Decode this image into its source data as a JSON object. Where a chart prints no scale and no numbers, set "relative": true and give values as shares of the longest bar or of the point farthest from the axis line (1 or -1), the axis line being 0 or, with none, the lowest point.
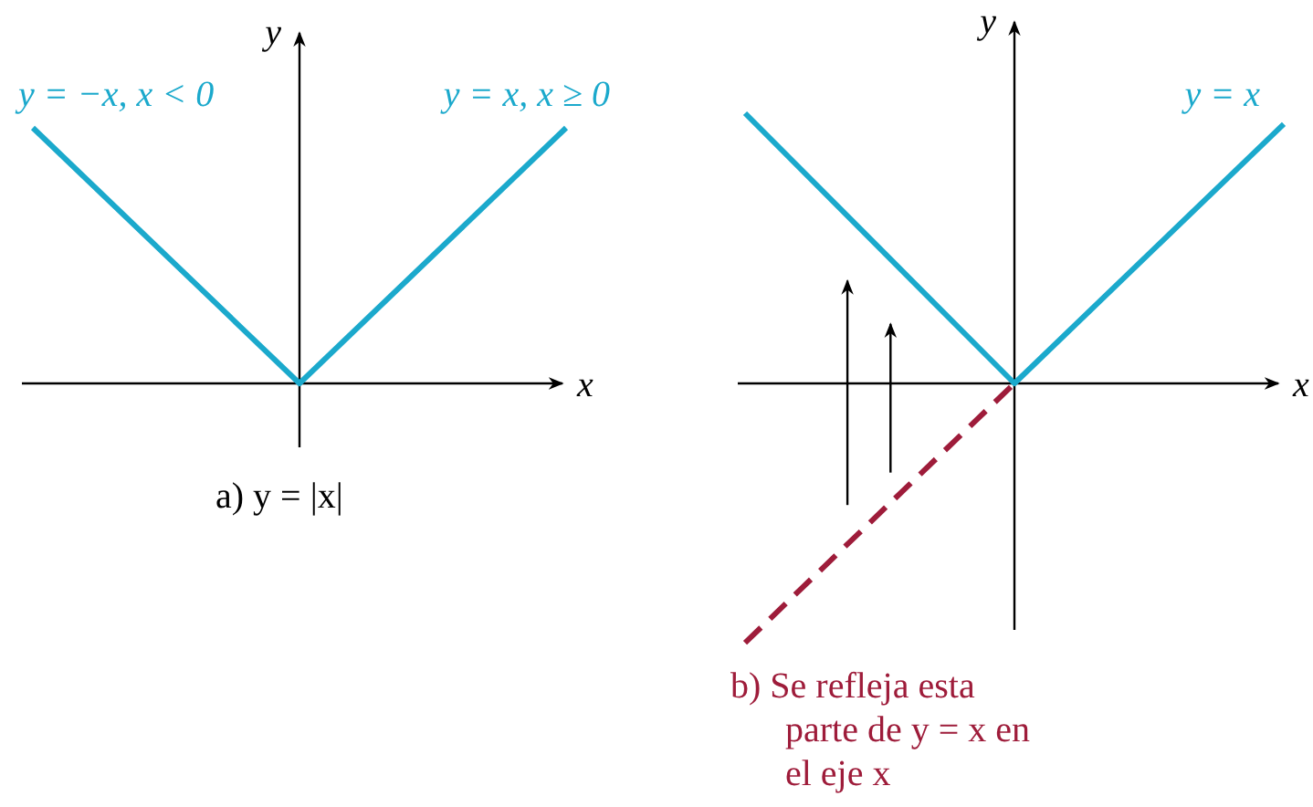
{
  "chart_data": [
    {
      "type": "line",
      "relative": true,
      "categories": [
        null,
        null,
        null
      ],
      "xlabel": "x",
      "ylabel": "y",
      "title": "a) y = |x|",
      "series": [
        {
          "color": "#1ba9cc",
          "values": [
            1,
            0,
            1
          ]
        }
      ],
      "annotations": [
        "y = −x, x < 0",
        "y = x, x ≥ 0"
      ]
    },
    {
      "type": "line",
      "relative": true,
      "categories": [
        null,
        null,
        null
      ],
      "xlabel": "x",
      "ylabel": "y",
      "title": "b) Se refleja esta parte de y = x en el eje x",
      "series": [
        {
          "color": "#1ba9cc",
          "values": [
            1,
            0,
            0.96
          ]
        },
        {
          "color": "#9e1c3a",
          "values": [
            -0.96,
            0,
            null
          ],
          "line_style": "dashed"
        }
      ],
      "annotations": [
        "y = x"
      ]
    }
  ]
}
